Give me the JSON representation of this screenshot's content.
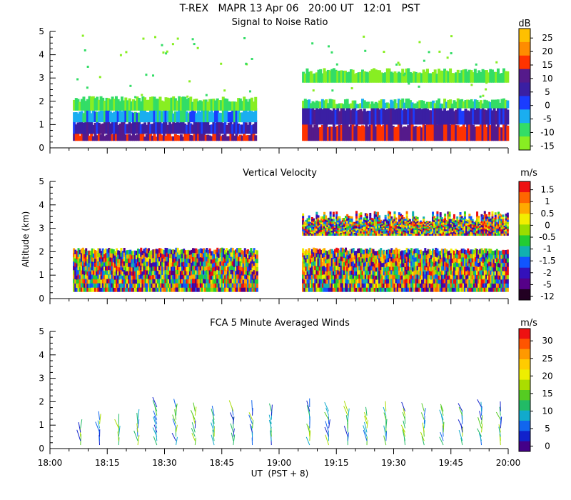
{
  "header": {
    "title": "T-REX   MAPR 13 Apr 06   20:00 UT   12:01   PST"
  },
  "chart_data": [
    {
      "type": "heatmap",
      "title": "Signal to Noise Ratio",
      "xlabel": "",
      "ylabel": "",
      "xlim": [
        0,
        120
      ],
      "ylim": [
        0,
        5
      ],
      "y_ticks": [
        "0",
        "1",
        "2",
        "3",
        "4",
        "5"
      ],
      "x_minor_step_minutes": 5,
      "colorbar": {
        "unit": "dB",
        "labels": [
          "25",
          "20",
          "15",
          "10",
          "5",
          "0",
          "-5",
          "-10",
          "-15"
        ],
        "colors": [
          "#ffc000",
          "#ff8c00",
          "#ff3300",
          "#551a8b",
          "#3a1fa3",
          "#1a3cff",
          "#1aaef0",
          "#33dd66",
          "#88ee22"
        ]
      },
      "data_gaps_minutes": [
        [
          0,
          6
        ],
        [
          54,
          66
        ]
      ],
      "layers": [
        {
          "minutes": [
            6,
            54
          ],
          "alt_km": [
            0.3,
            0.6
          ],
          "value_db": 12
        },
        {
          "minutes": [
            6,
            54
          ],
          "alt_km": [
            0.6,
            1.1
          ],
          "value_db": 5
        },
        {
          "minutes": [
            6,
            54
          ],
          "alt_km": [
            1.1,
            1.6
          ],
          "value_db": -5
        },
        {
          "minutes": [
            6,
            54
          ],
          "alt_km": [
            1.6,
            2.1
          ],
          "value_db": -12
        },
        {
          "minutes": [
            66,
            120
          ],
          "alt_km": [
            0.3,
            1.0
          ],
          "value_db": 12
        },
        {
          "minutes": [
            66,
            120
          ],
          "alt_km": [
            1.0,
            1.7
          ],
          "value_db": 5
        },
        {
          "minutes": [
            66,
            120
          ],
          "alt_km": [
            1.7,
            2.0
          ],
          "value_db": -10
        },
        {
          "minutes": [
            66,
            120
          ],
          "alt_km": [
            2.8,
            3.3
          ],
          "value_db": -12
        }
      ]
    },
    {
      "type": "heatmap",
      "title": "Vertical Velocity",
      "xlabel": "",
      "ylabel": "Altitude (km)",
      "xlim": [
        0,
        120
      ],
      "ylim": [
        0,
        5
      ],
      "y_ticks": [
        "0",
        "1",
        "2",
        "3",
        "4",
        "5"
      ],
      "colorbar": {
        "unit": "m/s",
        "labels": [
          "1.5",
          "1",
          "0.5",
          "0",
          "-0.5",
          "-1",
          "-1.5",
          "-2",
          "-5",
          "-12"
        ],
        "colors": [
          "#ee1111",
          "#ff6600",
          "#ffaa00",
          "#f2ee00",
          "#99dd00",
          "#22cc33",
          "#11b0b0",
          "#1155ff",
          "#3311bb",
          "#550088",
          "#220022"
        ]
      },
      "data_gaps_minutes": [
        [
          0,
          6
        ],
        [
          54,
          66
        ]
      ],
      "layers": [
        {
          "minutes": [
            6,
            54
          ],
          "alt_km": [
            0.3,
            2.1
          ]
        },
        {
          "minutes": [
            66,
            120
          ],
          "alt_km": [
            0.3,
            2.1
          ]
        },
        {
          "minutes": [
            66,
            120
          ],
          "alt_km": [
            2.7,
            3.5
          ]
        }
      ]
    },
    {
      "type": "scatter",
      "title": "FCA 5 Minute Averaged Winds",
      "xlabel": "UT  (PST + 8)",
      "ylabel": "",
      "xlim": [
        0,
        120
      ],
      "ylim": [
        0,
        5
      ],
      "y_ticks": [
        "0",
        "1",
        "2",
        "3",
        "4",
        "5"
      ],
      "x_ticks": [
        "18:00",
        "18:15",
        "18:30",
        "18:45",
        "19:00",
        "19:15",
        "19:30",
        "19:45",
        "20:00"
      ],
      "x_tick_minutes": [
        0,
        15,
        30,
        45,
        60,
        75,
        90,
        105,
        120
      ],
      "colorbar": {
        "unit": "m/s",
        "labels": [
          "30",
          "25",
          "20",
          "15",
          "10",
          "5",
          "0"
        ],
        "colors": [
          "#ee1111",
          "#ff5500",
          "#ff9900",
          "#ffcc00",
          "#eeee00",
          "#aadd00",
          "#55cc22",
          "#22bb66",
          "#11aacc",
          "#1166ee",
          "#1122cc",
          "#440088"
        ]
      },
      "profile_minutes": [
        8,
        13,
        18,
        23,
        28,
        33,
        38,
        43,
        48,
        53,
        58,
        68,
        73,
        78,
        83,
        88,
        93,
        98,
        103,
        108,
        113,
        118
      ],
      "profile_top_km": [
        1.0,
        1.3,
        1.1,
        1.3,
        1.9,
        1.8,
        1.6,
        1.5,
        1.7,
        1.7,
        1.6,
        1.8,
        1.6,
        1.6,
        1.5,
        1.6,
        1.6,
        1.6,
        1.6,
        1.6,
        1.9,
        1.7
      ]
    }
  ]
}
